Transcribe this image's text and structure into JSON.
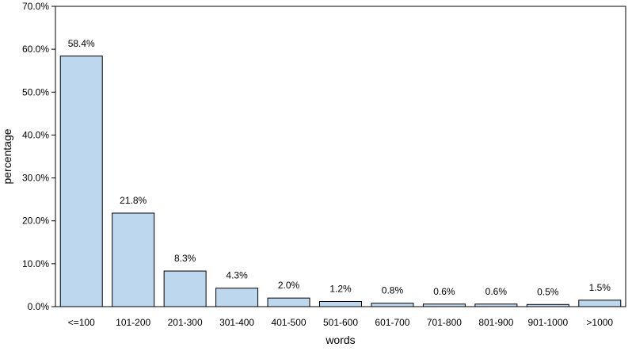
{
  "chart_data": {
    "type": "bar",
    "title": "",
    "xlabel": "words",
    "ylabel": "percentage",
    "categories": [
      "<=100",
      "101-200",
      "201-300",
      "301-400",
      "401-500",
      "501-600",
      "601-700",
      "701-800",
      "801-900",
      "901-1000",
      ">1000"
    ],
    "values": [
      58.4,
      21.8,
      8.3,
      4.3,
      2.0,
      1.2,
      0.8,
      0.6,
      0.6,
      0.5,
      1.5
    ],
    "data_labels": [
      "58.4%",
      "21.8%",
      "8.3%",
      "4.3%",
      "2.0%",
      "1.2%",
      "0.8%",
      "0.6%",
      "0.6%",
      "0.5%",
      "1.5%"
    ],
    "ylim": [
      0,
      70
    ],
    "yticks": [
      0,
      10,
      20,
      30,
      40,
      50,
      60,
      70
    ],
    "ytick_labels": [
      "0.0%",
      "10.0%",
      "20.0%",
      "30.0%",
      "40.0%",
      "50.0%",
      "60.0%",
      "70.0%"
    ],
    "grid": false,
    "legend": "none",
    "colors": {
      "bar_fill": "#bdd7ee",
      "bar_stroke": "#000000",
      "axis": "#000000"
    }
  }
}
